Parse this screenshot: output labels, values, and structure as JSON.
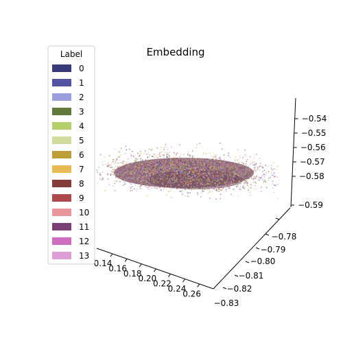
{
  "chart_data": {
    "type": "scatter",
    "title": "Embedding",
    "projection": "3d",
    "x_axis": {
      "ticks": [
        "0.14",
        "0.16",
        "0.18",
        "0.20",
        "0.22",
        "0.24",
        "0.26"
      ],
      "range": [
        0.13,
        0.27
      ]
    },
    "y_axis": {
      "ticks": [
        "−0.78",
        "−0.79",
        "−0.80",
        "−0.81",
        "−0.82",
        "−0.83"
      ],
      "range": [
        -0.835,
        -0.775
      ]
    },
    "z_axis": {
      "ticks": [
        "−0.54",
        "−0.55",
        "−0.56",
        "−0.57",
        "−0.58",
        "−0.59"
      ],
      "range": [
        -0.59,
        -0.535
      ]
    },
    "legend": {
      "title": "Label",
      "placement": "upper-left",
      "entries": [
        {
          "label": "0",
          "color": "#393b79"
        },
        {
          "label": "1",
          "color": "#5254a3"
        },
        {
          "label": "2",
          "color": "#9c9ede"
        },
        {
          "label": "3",
          "color": "#637939"
        },
        {
          "label": "4",
          "color": "#b5cf6b"
        },
        {
          "label": "5",
          "color": "#cedb9c"
        },
        {
          "label": "6",
          "color": "#bd9e39"
        },
        {
          "label": "7",
          "color": "#e7ba52"
        },
        {
          "label": "8",
          "color": "#843c39"
        },
        {
          "label": "9",
          "color": "#ad494a"
        },
        {
          "label": "10",
          "color": "#e7969c"
        },
        {
          "label": "11",
          "color": "#7b4173"
        },
        {
          "label": "12",
          "color": "#ce6dbd"
        },
        {
          "label": "13",
          "color": "#de9ed6"
        }
      ]
    },
    "point_cloud": {
      "center": {
        "x": 0.2,
        "y": -0.8,
        "z": -0.57
      },
      "dominant_color": "#8a5e6e"
    }
  }
}
